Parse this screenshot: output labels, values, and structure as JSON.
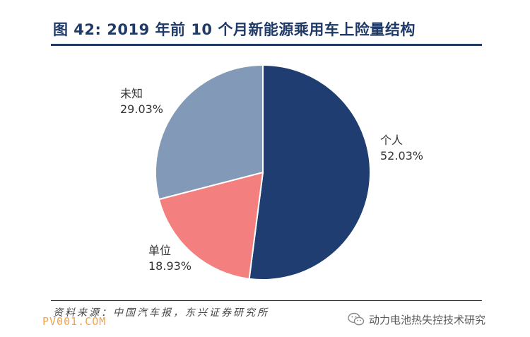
{
  "title": "图 42: 2019 年前 10 个月新能源乘用车上险量结构",
  "source": "资料来源：中国汽车报，东兴证券研究所",
  "watermark_left": "PV001.COM",
  "watermark_right": "动力电池热失控技术研究",
  "colors": {
    "title": "#1f3a66",
    "slice_personal": "#1f3d70",
    "slice_company": "#f47f7f",
    "slice_unknown": "#8299b8"
  },
  "chart_data": {
    "type": "pie",
    "title": "2019 年前 10 个月新能源乘用车上险量结构",
    "start_angle_deg": 0,
    "direction": "clockwise",
    "slices": [
      {
        "label": "个人",
        "value": 52.03,
        "value_label": "52.03%",
        "color": "#1f3d70"
      },
      {
        "label": "单位",
        "value": 18.93,
        "value_label": "18.93%",
        "color": "#f47f7f"
      },
      {
        "label": "未知",
        "value": 29.03,
        "value_label": "29.03%",
        "color": "#8299b8"
      }
    ]
  }
}
